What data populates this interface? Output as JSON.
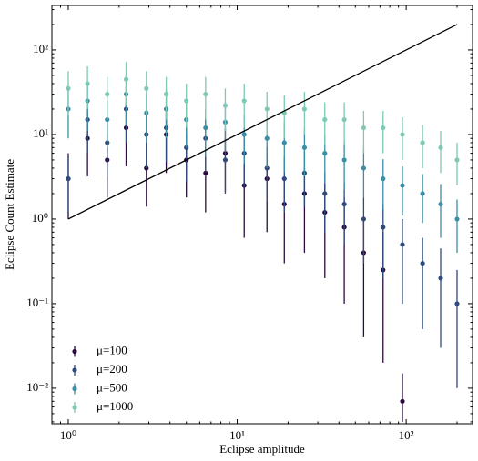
{
  "chart_data": {
    "type": "errorbar",
    "x_label": "Eclipse amplitude",
    "y_label": "Eclipse Count Estimate",
    "log_x": true,
    "log_y": true,
    "xlim": [
      0.8,
      247
    ],
    "ylim": [
      0.0038,
      336
    ],
    "xticks": [
      {
        "value": 1,
        "label": "10⁰"
      },
      {
        "value": 10,
        "label": "10¹"
      },
      {
        "value": 100,
        "label": "10²"
      }
    ],
    "yticks": [
      {
        "value": 0.01,
        "label": "10⁻²"
      },
      {
        "value": 0.1,
        "label": "10⁻¹"
      },
      {
        "value": 1,
        "label": "10⁰"
      },
      {
        "value": 10,
        "label": "10¹"
      },
      {
        "value": 100,
        "label": "10²"
      }
    ],
    "legend": "lower left",
    "x": [
      1,
      1.3,
      1.7,
      2.2,
      2.9,
      3.8,
      5,
      6.5,
      8.5,
      11,
      15,
      19,
      25,
      33,
      43,
      56,
      73,
      95,
      125,
      160,
      200
    ],
    "series": [
      {
        "name": "μ=100",
        "color": "#2b0b3f",
        "values": [
          3,
          9,
          5,
          12,
          4,
          10,
          5,
          3.5,
          6,
          2.5,
          3,
          1.5,
          2,
          1.2,
          0.8,
          0.4,
          0.25,
          0.007,
          null,
          null,
          null
        ],
        "lower": [
          1.0,
          3.2,
          1.8,
          4.2,
          1.4,
          3.5,
          1.8,
          1.2,
          2.1,
          0.6,
          0.7,
          0.3,
          0.4,
          0.2,
          0.1,
          0.04,
          0.02,
          0.004,
          null,
          null,
          null
        ],
        "upper": [
          6,
          18,
          10,
          24,
          8,
          20,
          10,
          7,
          12,
          5,
          6,
          3.2,
          4,
          2.6,
          1.8,
          1,
          0.7,
          0.015,
          null,
          null,
          null
        ]
      },
      {
        "name": "μ=200",
        "color": "#2f4b7c",
        "values": [
          3,
          15,
          8,
          20,
          10,
          12,
          7,
          9,
          5,
          6,
          4,
          3,
          3.5,
          2,
          1.5,
          1,
          0.8,
          0.5,
          0.3,
          0.2,
          0.1
        ],
        "lower": [
          1.2,
          6,
          3.2,
          8,
          4,
          4.8,
          2.8,
          3.6,
          2,
          2.4,
          1.6,
          1.2,
          1.4,
          0.7,
          0.5,
          0.3,
          0.2,
          0.1,
          0.05,
          0.03,
          0.01
        ],
        "upper": [
          5.4,
          27,
          14,
          36,
          18,
          22,
          13,
          16,
          9,
          11,
          7.2,
          5.4,
          6.3,
          3.6,
          2.7,
          1.8,
          1.5,
          1,
          0.6,
          0.45,
          0.25
        ]
      },
      {
        "name": "μ=500",
        "color": "#3b8ea5",
        "values": [
          20,
          25,
          15,
          30,
          18,
          20,
          15,
          12,
          14,
          10,
          9,
          8,
          7,
          6,
          5,
          4,
          3,
          2.5,
          2,
          1.5,
          1
        ],
        "lower": [
          9,
          11,
          7,
          13,
          8,
          9,
          7,
          5.4,
          6.3,
          4.5,
          4,
          3.6,
          3.2,
          2.7,
          2.2,
          1.8,
          1.3,
          1.1,
          0.9,
          0.6,
          0.4
        ],
        "upper": [
          34,
          42,
          25,
          51,
          31,
          34,
          25,
          20,
          24,
          17,
          15,
          14,
          12,
          10,
          8.5,
          6.8,
          5.1,
          4.2,
          3.4,
          2.6,
          1.7
        ]
      },
      {
        "name": "μ=1000",
        "color": "#7fc8b5",
        "values": [
          35,
          40,
          30,
          45,
          35,
          30,
          25,
          30,
          22,
          25,
          20,
          18,
          20,
          15,
          15,
          12,
          12,
          10,
          8,
          7,
          5
        ],
        "lower": [
          17,
          20,
          15,
          22,
          17,
          15,
          12,
          15,
          11,
          12,
          10,
          9,
          10,
          7.5,
          7.5,
          6,
          6,
          5,
          4,
          3.5,
          2.5
        ],
        "upper": [
          56,
          64,
          48,
          72,
          56,
          48,
          40,
          48,
          35,
          40,
          32,
          29,
          32,
          24,
          24,
          19,
          19,
          16,
          13,
          11,
          8
        ]
      }
    ],
    "reference_line": {
      "color": "#000000",
      "x": [
        1,
        200
      ],
      "y": [
        1,
        200
      ]
    }
  }
}
